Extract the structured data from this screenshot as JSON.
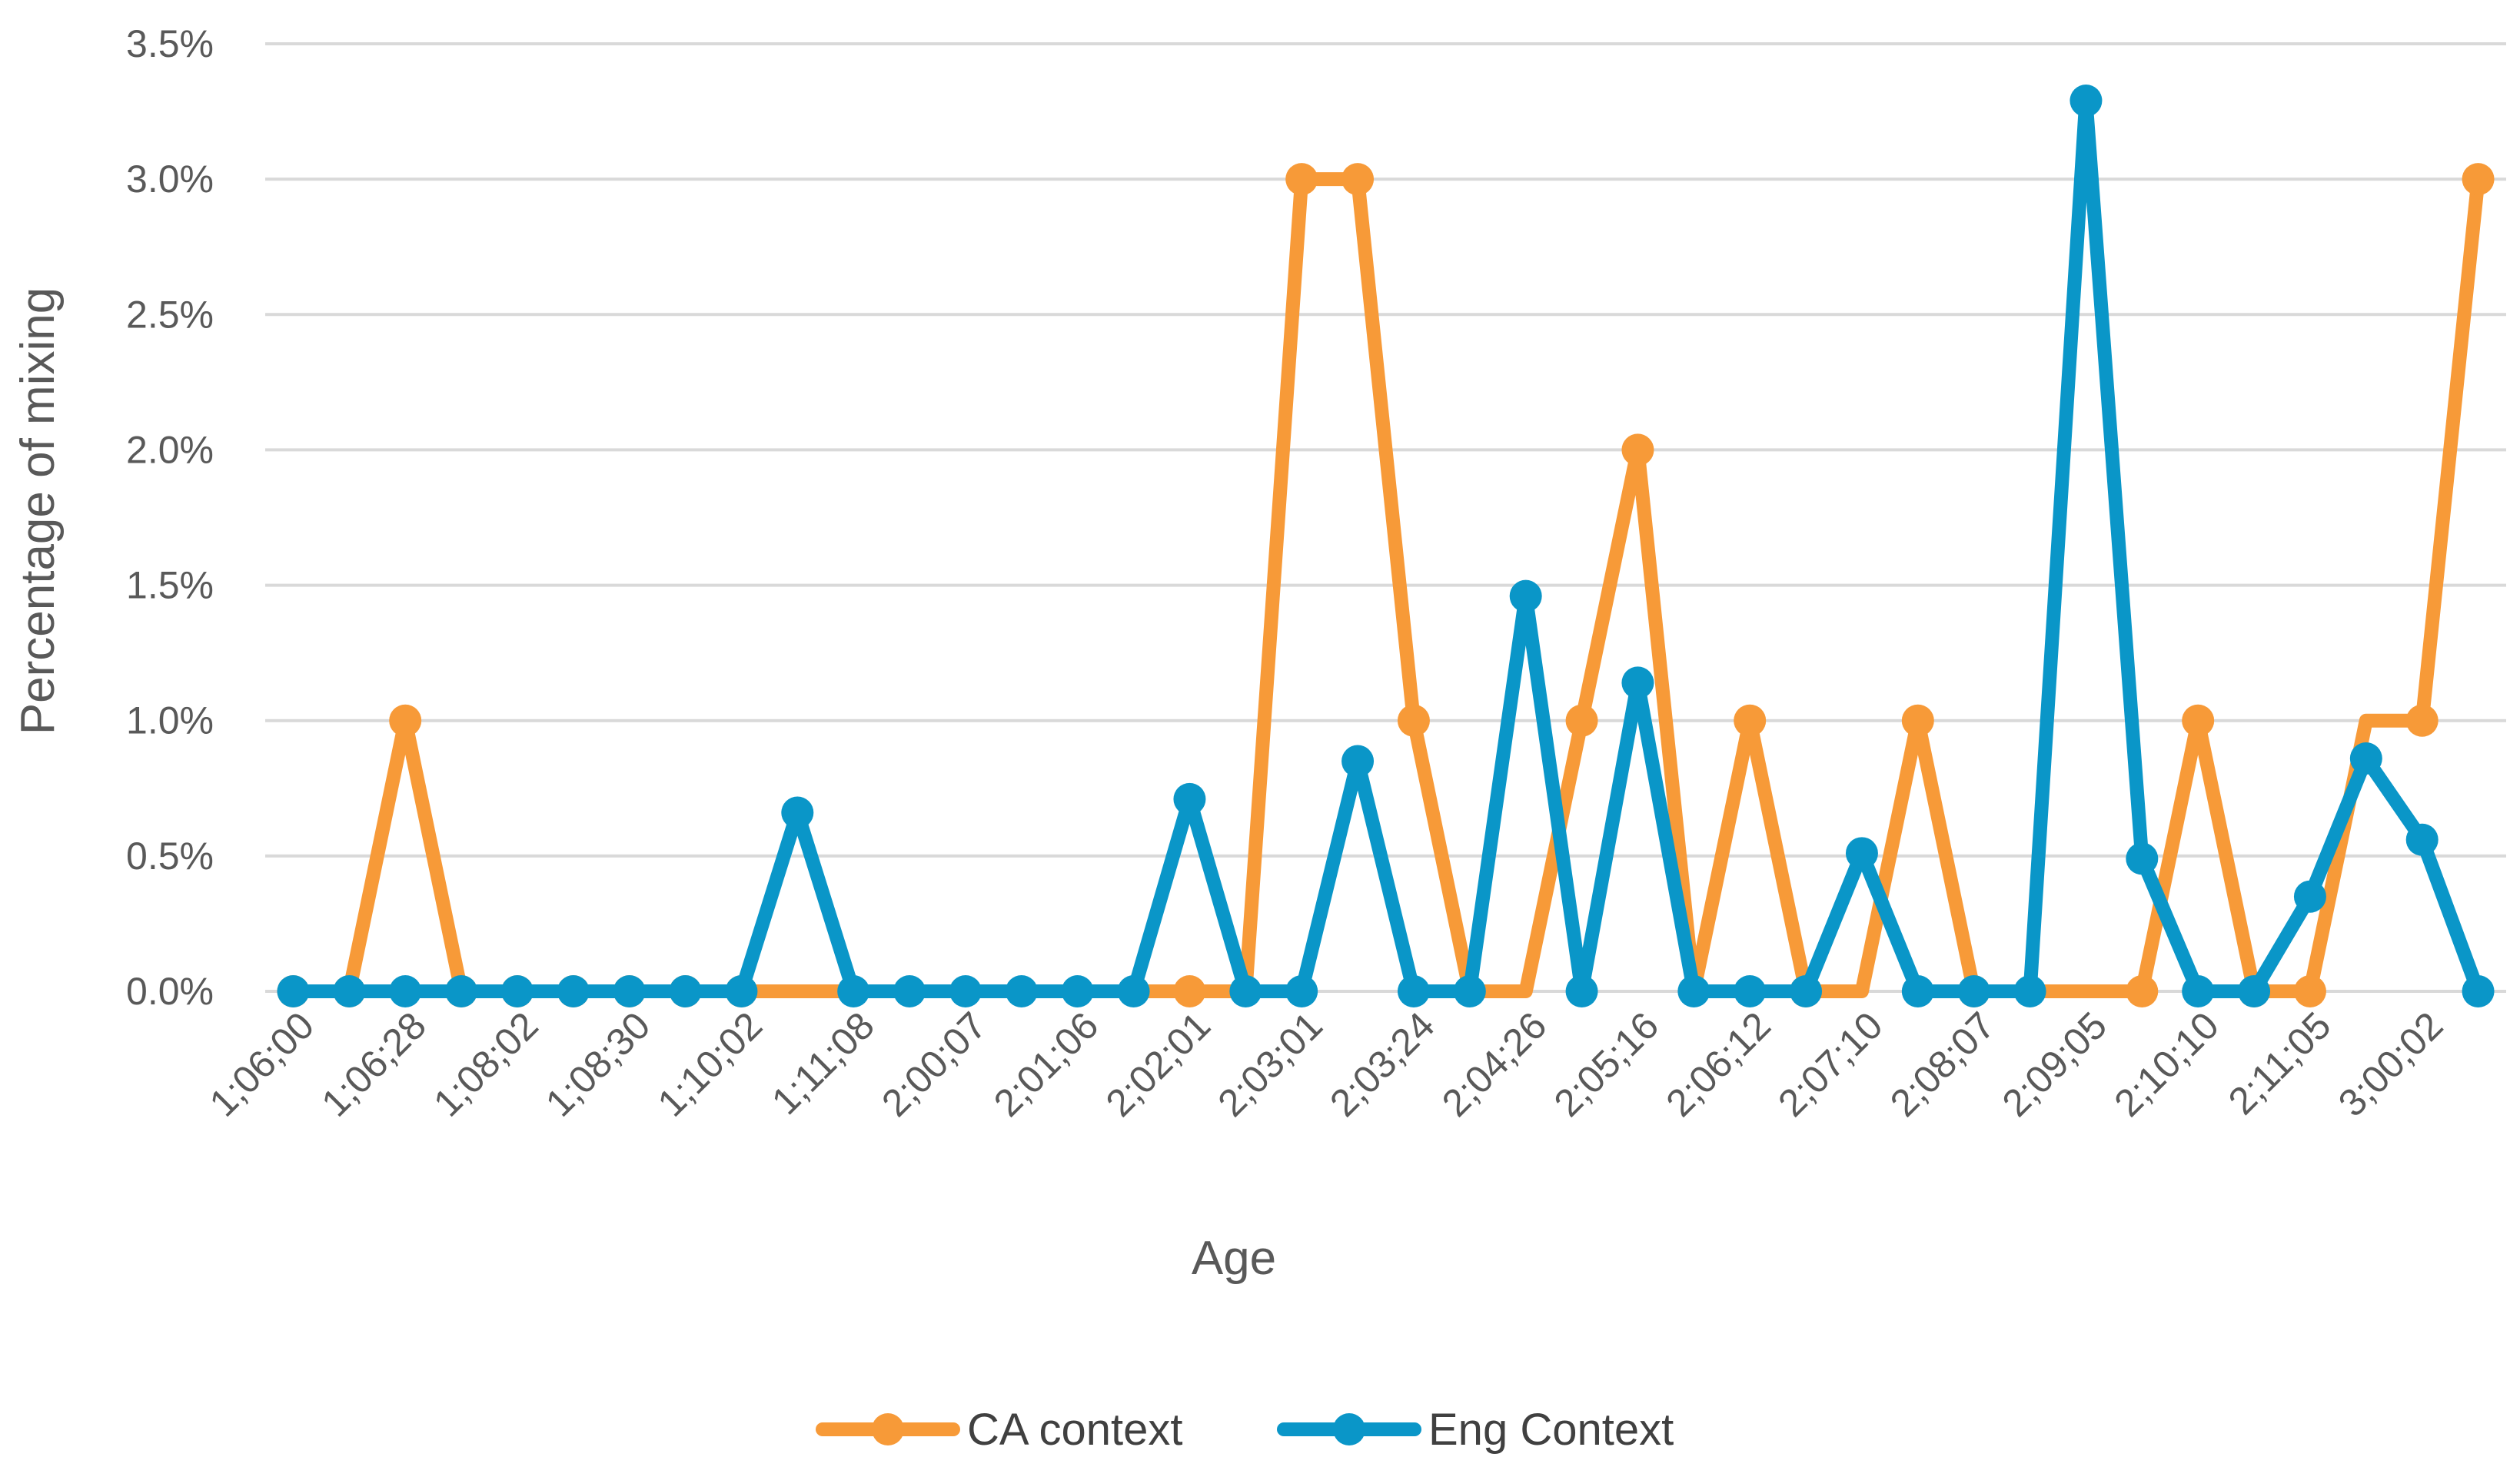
{
  "chart_data": {
    "type": "line",
    "title": "",
    "xlabel": "Age",
    "ylabel": "Percentage of mixing",
    "ylim": [
      0,
      3.5
    ],
    "y_ticks": [
      "0.0%",
      "0.5%",
      "1.0%",
      "1.5%",
      "2.0%",
      "2.5%",
      "3.0%",
      "3.5%"
    ],
    "grid": "horizontal",
    "legend_position": "bottom",
    "x": [
      "1;06;00",
      "",
      "1;06;28",
      "",
      "1;08;02",
      "",
      "1;08;30",
      "",
      "1;10;02",
      "",
      "1;11;08",
      "",
      "2;00;07",
      "",
      "2;01;06",
      "",
      "2;02;01",
      "",
      "2;03;01",
      "",
      "2;03;24",
      "",
      "2;04;26",
      "",
      "2;05;16",
      "",
      "2;06;12",
      "",
      "2;07;10",
      "",
      "2;08;07",
      "",
      "2;09;05",
      "",
      "2;10;10",
      "",
      "2;11;05",
      "",
      "3;00;02",
      ""
    ],
    "series": [
      {
        "name": "CA context",
        "color": "#F79A38",
        "values": [
          0,
          0,
          1.0,
          0,
          0,
          0,
          0,
          0,
          0,
          0,
          0,
          0,
          0,
          0,
          0,
          0,
          0,
          0,
          3.0,
          3.0,
          1.0,
          0,
          0,
          1.0,
          2.0,
          0,
          1.0,
          0,
          0,
          1.0,
          0,
          0,
          0,
          0,
          1.0,
          0,
          0,
          1.0,
          1.0,
          3.0
        ],
        "missing": [
          9,
          10,
          11,
          12,
          13,
          14,
          15,
          17,
          21,
          22,
          25,
          28,
          31,
          32,
          37
        ]
      },
      {
        "name": "Eng Context",
        "color": "#0A96C8",
        "values": [
          0,
          0,
          0,
          0,
          0,
          0,
          0,
          0,
          0,
          0.66,
          0,
          0,
          0,
          0,
          0,
          0,
          0.71,
          0,
          0,
          0.85,
          0,
          0,
          1.46,
          0,
          1.14,
          0,
          0,
          0,
          0.51,
          0,
          0,
          0,
          3.29,
          0.49,
          0,
          0,
          0.35,
          0.86,
          0.56,
          0
        ]
      }
    ]
  }
}
